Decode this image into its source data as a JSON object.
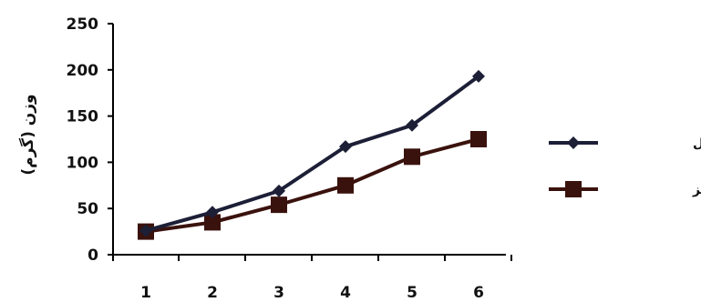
{
  "chart_data": {
    "type": "line",
    "x": [
      1,
      2,
      3,
      4,
      5,
      6
    ],
    "series": [
      {
        "name": "تیلاپیای نیل",
        "marker": "diamond",
        "color": "#1c1f36",
        "values": [
          26,
          46,
          69,
          117,
          140,
          193
        ]
      },
      {
        "name": "هیبرید قرمز",
        "marker": "square",
        "color": "#3a120d",
        "values": [
          25,
          35,
          54,
          75,
          106,
          125
        ]
      }
    ],
    "xticks": [
      "1",
      "2",
      "3",
      "4",
      "5",
      "6"
    ],
    "yticks": [
      "0",
      "50",
      "100",
      "150",
      "200",
      "250"
    ],
    "ylabel": "وزن (گرم)",
    "xlabel": "",
    "ylim": [
      0,
      250
    ],
    "grid": false,
    "legend": "right"
  }
}
